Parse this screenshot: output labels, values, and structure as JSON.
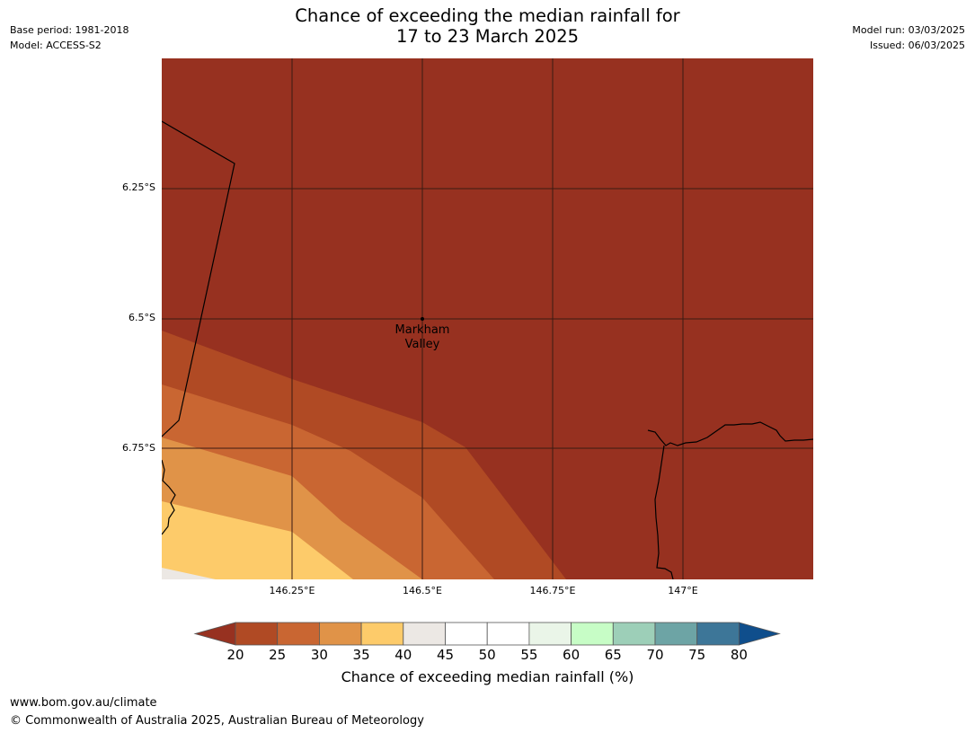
{
  "header": {
    "title_line1": "Chance of exceeding the median rainfall for",
    "title_line2": "17 to 23 March 2025",
    "base_period": "Base period: 1981-2018",
    "model": "Model: ACCESS-S2",
    "model_run": "Model run: 03/03/2025",
    "issued": "Issued: 06/03/2025"
  },
  "map": {
    "latitude_labels": [
      "6.25°S",
      "6.5°S",
      "6.75°S"
    ],
    "longitude_labels": [
      "146.25°E",
      "146.5°E",
      "146.75°E",
      "147°E"
    ],
    "place_label_line1": "Markham",
    "place_label_line2": "Valley"
  },
  "colorbar": {
    "ticks": [
      "20",
      "25",
      "30",
      "35",
      "40",
      "45",
      "50",
      "55",
      "60",
      "65",
      "70",
      "75",
      "80"
    ],
    "colors": [
      "#973120",
      "#b04a24",
      "#c96632",
      "#e09348",
      "#fdcb6a",
      "#ece8e4",
      "#ffffff",
      "#ffffff",
      "#eaf5e8",
      "#c7fdc6",
      "#9dcfb8",
      "#6da4a5",
      "#3d7698",
      "#0f4e8c"
    ],
    "label": "Chance of exceeding median rainfall (%)"
  },
  "footer": {
    "url": "www.bom.gov.au/climate",
    "copyright": "© Commonwealth of Australia 2025, Australian Bureau of Meteorology"
  }
}
